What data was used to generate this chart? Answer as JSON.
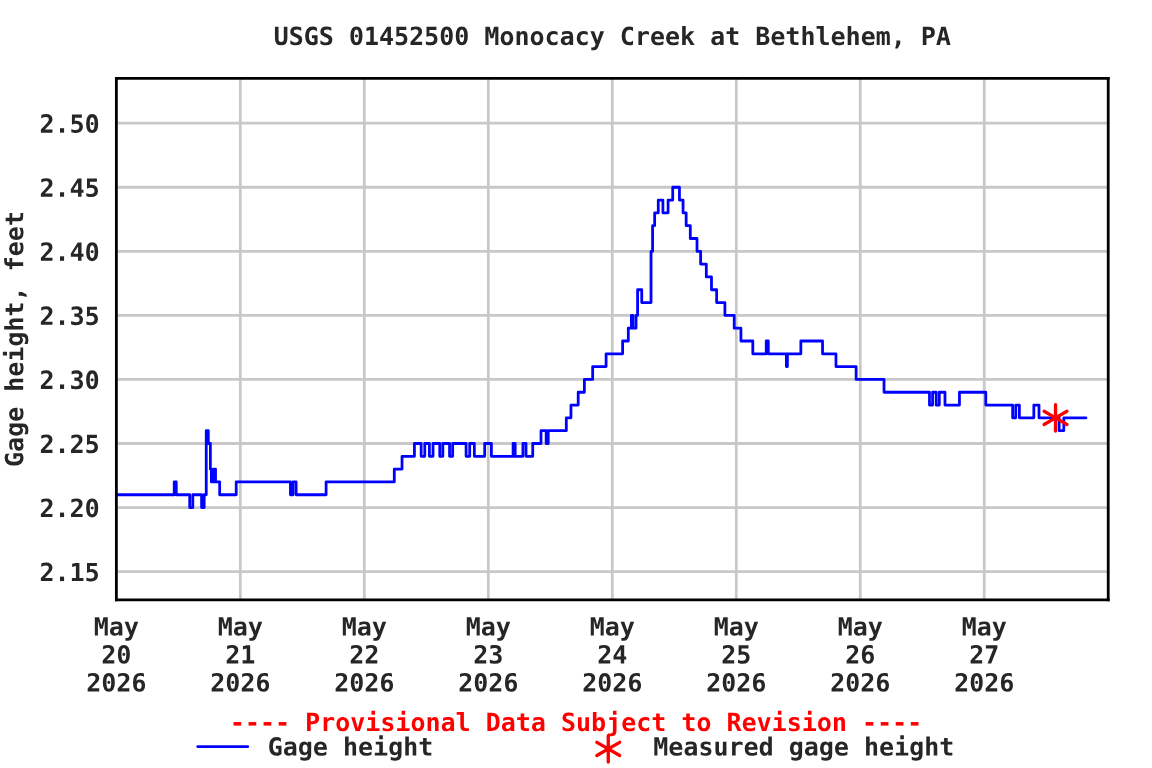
{
  "chart_data": {
    "type": "step",
    "title": "USGS 01452500 Monocacy Creek at Bethlehem, PA",
    "ylabel": "Gage height, feet",
    "annotations": [
      "---- Provisional Data Subject to Revision ----"
    ],
    "xlim": [
      "2026-05-20T00:00",
      "2026-05-28T00:00"
    ],
    "xticks": [
      {
        "value": "2026-05-20",
        "label": "May\n20\n2026"
      },
      {
        "value": "2026-05-21",
        "label": "May\n21\n2026"
      },
      {
        "value": "2026-05-22",
        "label": "May\n22\n2026"
      },
      {
        "value": "2026-05-23",
        "label": "May\n23\n2026"
      },
      {
        "value": "2026-05-24",
        "label": "May\n24\n2026"
      },
      {
        "value": "2026-05-25",
        "label": "May\n25\n2026"
      },
      {
        "value": "2026-05-26",
        "label": "May\n26\n2026"
      },
      {
        "value": "2026-05-27",
        "label": "May\n27\n2026"
      }
    ],
    "ylim": [
      2.128,
      2.535
    ],
    "yticks": [
      {
        "value": 2.15,
        "label": "2.15"
      },
      {
        "value": 2.2,
        "label": "2.20"
      },
      {
        "value": 2.25,
        "label": "2.25"
      },
      {
        "value": 2.3,
        "label": "2.30"
      },
      {
        "value": 2.35,
        "label": "2.35"
      },
      {
        "value": 2.4,
        "label": "2.40"
      },
      {
        "value": 2.45,
        "label": "2.45"
      },
      {
        "value": 2.5,
        "label": "2.50"
      }
    ],
    "grid": true,
    "legend": "bottom",
    "series": [
      {
        "name": "Gage height",
        "color": "#0000ff",
        "marker": "none",
        "x": [
          "2026-05-20T00:00",
          "2026-05-20T11:12",
          "2026-05-20T11:36",
          "2026-05-20T14:12",
          "2026-05-20T14:48",
          "2026-05-20T16:30",
          "2026-05-20T17:00",
          "2026-05-20T17:24",
          "2026-05-20T17:48",
          "2026-05-20T18:12",
          "2026-05-20T18:24",
          "2026-05-20T18:48",
          "2026-05-20T19:12",
          "2026-05-20T20:00",
          "2026-05-20T23:12",
          "2026-05-21T09:42",
          "2026-05-21T10:12",
          "2026-05-21T10:48",
          "2026-05-21T16:36",
          "2026-05-22T05:48",
          "2026-05-22T07:18",
          "2026-05-22T09:42",
          "2026-05-22T11:00",
          "2026-05-22T11:42",
          "2026-05-22T12:36",
          "2026-05-22T13:18",
          "2026-05-22T14:36",
          "2026-05-22T15:12",
          "2026-05-22T16:30",
          "2026-05-22T17:06",
          "2026-05-22T19:42",
          "2026-05-22T20:24",
          "2026-05-22T21:18",
          "2026-05-22T23:18",
          "2026-05-23T00:36",
          "2026-05-23T04:48",
          "2026-05-23T05:12",
          "2026-05-23T06:42",
          "2026-05-23T07:18",
          "2026-05-23T08:36",
          "2026-05-23T10:12",
          "2026-05-23T11:12",
          "2026-05-23T11:36",
          "2026-05-23T15:06",
          "2026-05-23T16:00",
          "2026-05-23T17:24",
          "2026-05-23T18:36",
          "2026-05-23T20:12",
          "2026-05-23T22:48",
          "2026-05-24T02:00",
          "2026-05-24T03:06",
          "2026-05-24T03:42",
          "2026-05-24T04:00",
          "2026-05-24T04:36",
          "2026-05-24T04:54",
          "2026-05-24T05:42",
          "2026-05-24T07:30",
          "2026-05-24T07:48",
          "2026-05-24T08:12",
          "2026-05-24T08:54",
          "2026-05-24T09:48",
          "2026-05-24T10:48",
          "2026-05-24T11:42",
          "2026-05-24T13:00",
          "2026-05-24T13:42",
          "2026-05-24T14:18",
          "2026-05-24T15:06",
          "2026-05-24T16:24",
          "2026-05-24T17:06",
          "2026-05-24T18:12",
          "2026-05-24T19:12",
          "2026-05-24T20:12",
          "2026-05-24T21:48",
          "2026-05-24T23:36",
          "2026-05-25T00:54",
          "2026-05-25T03:12",
          "2026-05-25T05:48",
          "2026-05-25T06:12",
          "2026-05-25T09:42",
          "2026-05-25T09:54",
          "2026-05-25T12:30",
          "2026-05-25T16:42",
          "2026-05-25T19:18",
          "2026-05-25T23:12",
          "2026-05-26T04:36",
          "2026-05-26T13:24",
          "2026-05-26T14:00",
          "2026-05-26T14:42",
          "2026-05-26T15:18",
          "2026-05-26T16:24",
          "2026-05-26T19:12",
          "2026-05-27T00:18",
          "2026-05-27T05:30",
          "2026-05-27T06:06",
          "2026-05-27T06:48",
          "2026-05-27T09:36",
          "2026-05-27T10:36",
          "2026-05-27T14:30",
          "2026-05-27T15:24",
          "2026-05-27T19:42"
        ],
        "values": [
          2.21,
          2.22,
          2.21,
          2.2,
          2.21,
          2.2,
          2.21,
          2.26,
          2.25,
          2.23,
          2.22,
          2.23,
          2.22,
          2.21,
          2.22,
          2.21,
          2.22,
          2.21,
          2.22,
          2.23,
          2.24,
          2.25,
          2.24,
          2.25,
          2.24,
          2.25,
          2.24,
          2.25,
          2.24,
          2.25,
          2.24,
          2.25,
          2.24,
          2.25,
          2.24,
          2.25,
          2.24,
          2.25,
          2.24,
          2.25,
          2.26,
          2.25,
          2.26,
          2.27,
          2.28,
          2.29,
          2.3,
          2.31,
          2.32,
          2.33,
          2.34,
          2.35,
          2.34,
          2.35,
          2.37,
          2.36,
          2.4,
          2.42,
          2.43,
          2.44,
          2.43,
          2.44,
          2.45,
          2.44,
          2.43,
          2.42,
          2.41,
          2.4,
          2.39,
          2.38,
          2.37,
          2.36,
          2.35,
          2.34,
          2.33,
          2.32,
          2.33,
          2.32,
          2.31,
          2.32,
          2.33,
          2.32,
          2.31,
          2.3,
          2.29,
          2.28,
          2.29,
          2.28,
          2.29,
          2.28,
          2.29,
          2.28,
          2.27,
          2.28,
          2.27,
          2.28,
          2.27,
          2.26,
          2.27,
          2.27
        ]
      },
      {
        "name": "Measured gage height",
        "type": "scatter",
        "color": "#ff0000",
        "marker": "cross",
        "x": [
          "2026-05-27T13:48"
        ],
        "values": [
          2.27
        ]
      }
    ]
  }
}
